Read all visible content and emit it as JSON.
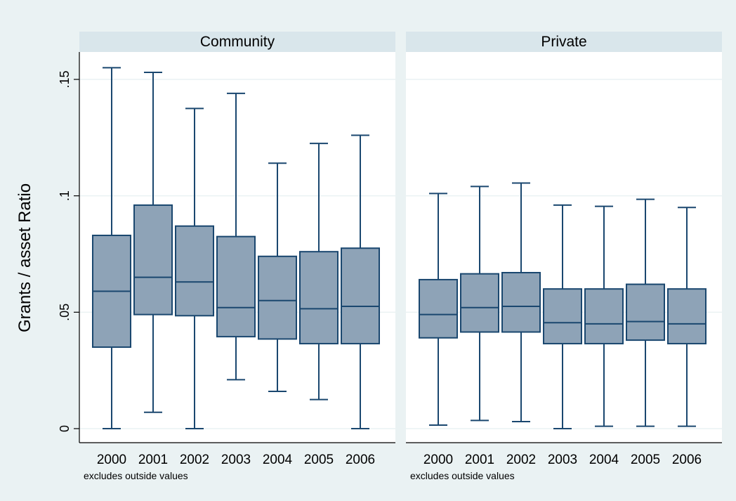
{
  "colors": {
    "outer_background": "#eaf2f3",
    "plot_background": "#ffffff",
    "strip_background": "#d9e6eb",
    "box_fill": "#8ea3b7",
    "box_stroke": "#1a476f",
    "grid": "#eaf2f3",
    "text": "#000000"
  },
  "chart_data": {
    "type": "box",
    "ylabel": "Grants / asset Ratio",
    "ylim": [
      0,
      0.16
    ],
    "yticks": [
      0,
      0.05,
      0.1,
      0.15
    ],
    "ytick_labels": [
      "0",
      ".05",
      ".1",
      ".15"
    ],
    "grid": true,
    "note": "excludes outside values",
    "categories": [
      "2000",
      "2001",
      "2002",
      "2003",
      "2004",
      "2005",
      "2006"
    ],
    "panels": [
      {
        "title": "Community",
        "boxes": [
          {
            "year": "2000",
            "whisker_low": 0.0,
            "q1": 0.035,
            "median": 0.059,
            "q3": 0.083,
            "whisker_high": 0.155
          },
          {
            "year": "2001",
            "whisker_low": 0.007,
            "q1": 0.049,
            "median": 0.065,
            "q3": 0.096,
            "whisker_high": 0.153
          },
          {
            "year": "2002",
            "whisker_low": 0.0,
            "q1": 0.0485,
            "median": 0.063,
            "q3": 0.087,
            "whisker_high": 0.1375
          },
          {
            "year": "2003",
            "whisker_low": 0.021,
            "q1": 0.0395,
            "median": 0.052,
            "q3": 0.0825,
            "whisker_high": 0.144
          },
          {
            "year": "2004",
            "whisker_low": 0.016,
            "q1": 0.0385,
            "median": 0.055,
            "q3": 0.074,
            "whisker_high": 0.114
          },
          {
            "year": "2005",
            "whisker_low": 0.0125,
            "q1": 0.0365,
            "median": 0.0515,
            "q3": 0.076,
            "whisker_high": 0.1225
          },
          {
            "year": "2006",
            "whisker_low": 0.0,
            "q1": 0.0365,
            "median": 0.0525,
            "q3": 0.0775,
            "whisker_high": 0.126
          }
        ]
      },
      {
        "title": "Private",
        "boxes": [
          {
            "year": "2000",
            "whisker_low": 0.0015,
            "q1": 0.039,
            "median": 0.049,
            "q3": 0.064,
            "whisker_high": 0.101
          },
          {
            "year": "2001",
            "whisker_low": 0.0035,
            "q1": 0.0415,
            "median": 0.052,
            "q3": 0.0665,
            "whisker_high": 0.104
          },
          {
            "year": "2002",
            "whisker_low": 0.003,
            "q1": 0.0415,
            "median": 0.0525,
            "q3": 0.067,
            "whisker_high": 0.1055
          },
          {
            "year": "2003",
            "whisker_low": 0.0,
            "q1": 0.0365,
            "median": 0.0455,
            "q3": 0.06,
            "whisker_high": 0.096
          },
          {
            "year": "2004",
            "whisker_low": 0.001,
            "q1": 0.0365,
            "median": 0.045,
            "q3": 0.06,
            "whisker_high": 0.0955
          },
          {
            "year": "2005",
            "whisker_low": 0.001,
            "q1": 0.038,
            "median": 0.046,
            "q3": 0.062,
            "whisker_high": 0.0985
          },
          {
            "year": "2006",
            "whisker_low": 0.001,
            "q1": 0.0365,
            "median": 0.045,
            "q3": 0.06,
            "whisker_high": 0.095
          }
        ]
      }
    ]
  }
}
